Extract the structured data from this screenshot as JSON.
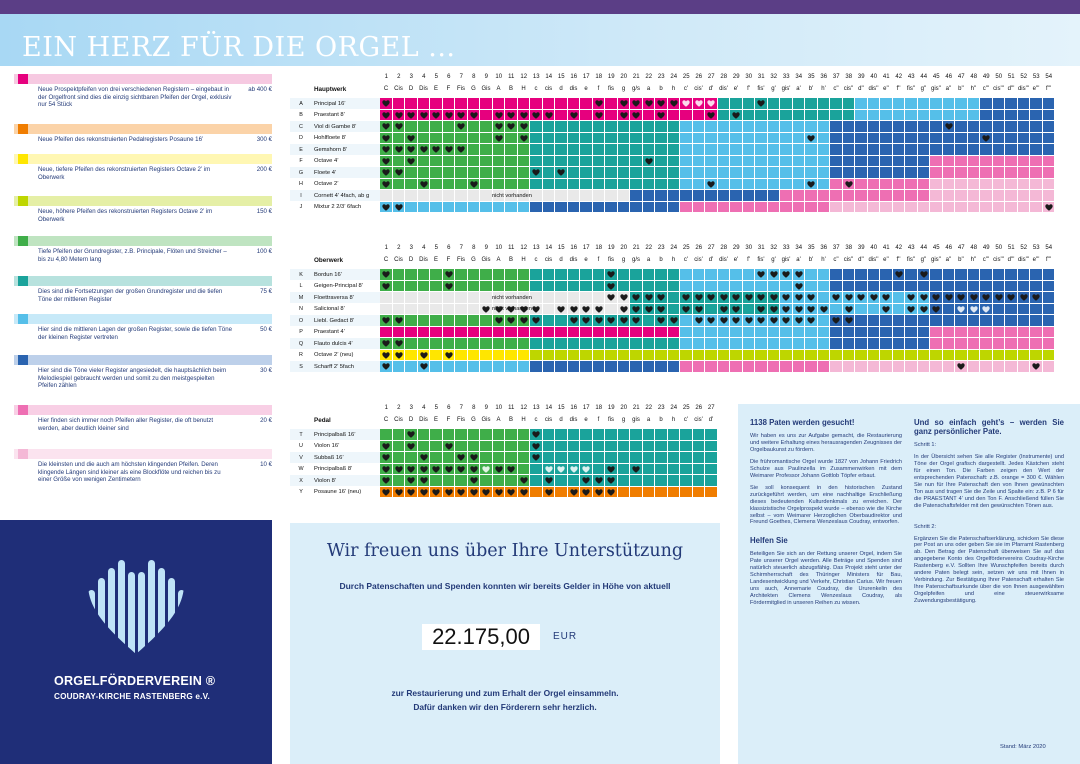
{
  "header": {
    "title": "EIN HERZ FÜR DIE ORGEL ..."
  },
  "colors": {
    "pink": "#e6007e",
    "orange": "#f07d00",
    "yellow": "#ffe600",
    "lime": "#bed600",
    "green": "#3fae49",
    "teal": "#1aa39b",
    "lightblue": "#55bfe9",
    "blue": "#2a64b0",
    "lightpink": "#ee6fb3",
    "palepink": "#f4b8d6",
    "notavail": "#e9e9e9"
  },
  "legend": [
    {
      "color": "pink",
      "desc": "Neue Prospektpfeifen von drei verschiedenen Registern – eingebaut in der Orgelfront sind dies die einzig sichtbaren Pfeifen der Orgel, exklusiv nur 54 Stück",
      "price": "ab 400 €"
    },
    {
      "color": "orange",
      "desc": "Neue Pfeifen des rekonstruierten Pedalregisters Posaune 16’",
      "price": "300 €"
    },
    {
      "color": "yellow",
      "desc": "Neue, tiefere Pfeifen des rekonstruierten Registers Octave 2’ im Oberwerk",
      "price": "200 €"
    },
    {
      "color": "lime",
      "desc": "Neue, höhere Pfeifen des rekonstruierten Registers Octave 2’ im Oberwerk",
      "price": "150 €"
    },
    {
      "color": "green",
      "desc": "Tiefe Pfeifen der Grundregister, z.B. Principale, Flöten und Streicher – bis zu 4,80 Metern lang",
      "price": "100 €"
    },
    {
      "color": "teal",
      "desc": "Dies sind die Fortsetzungen der großen Grundregister und die tiefen Töne der mittleren Register",
      "price": "75 €"
    },
    {
      "color": "lightblue",
      "desc": "Hier sind die mittleren Lagen der großen Register, sowie die tiefen Töne der kleinen Register vertreten",
      "price": "50 €"
    },
    {
      "color": "blue",
      "desc": "Hier sind die Töne vieler Register angesiedelt, die hauptsächlich beim Melodiespiel gebraucht werden und somit zu den meistgespielten Pfeifen zählen",
      "price": "30 €"
    },
    {
      "color": "lightpink",
      "desc": "Hier finden sich immer noch Pfeifen aller Register, die oft benutzt werden, aber deutlich kleiner sind",
      "price": "20 €"
    },
    {
      "color": "palepink",
      "desc": "Die kleinsten und die auch am höchsten klingenden Pfeifen. Deren klingende Längen sind kleiner als eine Blockflöte und reichen bis zu einer Größe von wenigen Zentimetern",
      "price": "10 €"
    }
  ],
  "notes_manual": [
    "C",
    "Cis",
    "D",
    "Dis",
    "E",
    "F",
    "Fis",
    "G",
    "Gis",
    "A",
    "B",
    "H",
    "c",
    "cis",
    "d",
    "dis",
    "e",
    "f",
    "fis",
    "g",
    "g/s",
    "a",
    "b",
    "h",
    "c'",
    "cis'",
    "d'",
    "dis'",
    "e'",
    "f'",
    "fis'",
    "g'",
    "gis'",
    "a'",
    "b'",
    "h'",
    "c''",
    "cis''",
    "d''",
    "dis''",
    "e''",
    "f''",
    "fis''",
    "g''",
    "gis''",
    "a''",
    "b''",
    "h''",
    "c'''",
    "cis'''",
    "d'''",
    "dis'''",
    "e'''",
    "f'''"
  ],
  "notes_pedal": [
    "C",
    "Cis",
    "D",
    "Dis",
    "E",
    "F",
    "Fis",
    "G",
    "Gis",
    "A",
    "B",
    "H",
    "c",
    "cis",
    "d",
    "dis",
    "e",
    "f",
    "fis",
    "g",
    "gis",
    "a",
    "b",
    "h",
    "c'",
    "cis'",
    "d'"
  ],
  "hauptwerk": {
    "title": "Hauptwerk",
    "rows": [
      {
        "letter": "A",
        "name": "Principal 16’"
      },
      {
        "letter": "B",
        "name": "Praestant 8’"
      },
      {
        "letter": "C",
        "name": "Viol di Gambe 8’"
      },
      {
        "letter": "D",
        "name": "Hohlfloete 8’"
      },
      {
        "letter": "E",
        "name": "Gemshorn 8’"
      },
      {
        "letter": "F",
        "name": "Octave 4’"
      },
      {
        "letter": "G",
        "name": "Floete 4’"
      },
      {
        "letter": "H",
        "name": "Octave 2’"
      },
      {
        "letter": "I",
        "name": "Cornett 4’ 4fach, ab g",
        "na": "nicht vorhanden"
      },
      {
        "letter": "J",
        "name": "Mixtur 2 2/3’ 6fach"
      }
    ]
  },
  "oberwerk": {
    "title": "Oberwerk",
    "rows": [
      {
        "letter": "K",
        "name": "Bordun 16’"
      },
      {
        "letter": "L",
        "name": "Geigen-Principal 8’"
      },
      {
        "letter": "M",
        "name": "Floettraversa 8’",
        "na": "nicht vorhanden"
      },
      {
        "letter": "N",
        "name": "Salicional 8’",
        "na": "nicht vorhanden"
      },
      {
        "letter": "O",
        "name": "Liebl. Gedact 8’"
      },
      {
        "letter": "P",
        "name": "Praestant 4’"
      },
      {
        "letter": "Q",
        "name": "Flauto dulcis 4’"
      },
      {
        "letter": "R",
        "name": "Octave 2’ (neu)"
      },
      {
        "letter": "S",
        "name": "Scharff 2’ 5fach"
      }
    ]
  },
  "pedal": {
    "title": "Pedal",
    "rows": [
      {
        "letter": "T",
        "name": "Principalbaß 16’"
      },
      {
        "letter": "U",
        "name": "Violon 16’"
      },
      {
        "letter": "V",
        "name": "Subbaß 16’"
      },
      {
        "letter": "W",
        "name": "Principalbaß 8’"
      },
      {
        "letter": "X",
        "name": "Violon 8’"
      },
      {
        "letter": "Y",
        "name": "Posaune 16’ (neu)"
      }
    ]
  },
  "org": {
    "name": "ORGELFÖRDERVEREIN ®",
    "sub": "COUDRAY-KIRCHE RASTENBERG e.V."
  },
  "support": {
    "headline": "Wir freuen uns über Ihre Unterstützung",
    "line1": "Durch Patenschaften und Spenden konnten wir bereits Gelder in Höhe von aktuell",
    "amount": "22.175,00",
    "currency": "EUR",
    "line2a": "zur Restaurierung und zum Erhalt der Orgel einsammeln.",
    "line2b": "Dafür danken wir den Förderern sehr herzlich."
  },
  "right_left": {
    "h1": "1138 Paten werden gesucht!",
    "p1": "Wir haben es uns zur Aufgabe gemacht, die Restaurierung und weitere Erhaltung eines herausragenden Zeugnisses der Orgelbaukunst zu fördern.",
    "p2": "Die frühromantische Orgel wurde 1827 von Johann Friedrich Schulze aus Paulinzella im Zusammenwirken mit dem Weimarer Professor Johann Gottlob Töpfer erbaut.",
    "p3": "Sie soll konsequent in den historischen Zustand zurückgeführt werden, um eine nachhaltige Erschließung dieses bedeutenden Kulturdenkmals zu erreichen. Der klassizistische Orgelprospekt wurde – ebenso wie die Kirche selbst – vom Weimarer Herzoglichen Oberbaudirektor und Freund Goethes, Clemens Wenzeslaus Coudray, entworfen.",
    "h2": "Helfen Sie",
    "p4": "Beteiligen Sie sich an der Rettung unserer Orgel, indem Sie Pate unserer Orgel werden. Alle Beträge und Spenden sind natürlich steuerlich abzugsfähig. Das Projekt steht unter der Schirmherrschaft des Thüringer Ministers für Bau, Landesentwicklung und Verkehr, Christian Carius. Wir freuen uns auch, Annemarie Coudray, die Ururenkelin des Architekten Clemens Wenzeslaus Coudray, als Fördermitglied in unseren Reihen zu wissen."
  },
  "right_right": {
    "h1": "Und so einfach geht’s – werden Sie ganz persönlicher Pate.",
    "s1": "Schritt 1:",
    "p1": "In der Übersicht sehen Sie alle Register (Instrumente) und Töne der Orgel grafisch dargestellt. Jedes Kästchen steht für einen Ton. Die Farben zeigen den Wert der entsprechenden Patenschaft: z.B. orange = 300 €. Wählen Sie nun für Ihre Patenschaft den von Ihnen gewünschten Ton aus und tragen Sie die Zeile und Spalte ein: z.B. P 6 für die PRAESTANT 4’ und den Ton F. Anschließend füllen Sie die Patenschaftsfelder mit den gewünschten Tönen aus.",
    "s2": "Schritt 2:",
    "p2": "Ergänzen Sie die Patenschaftserklärung, schicken Sie diese per Post an uns oder geben Sie sie im Pfarramt Rastenberg ab. Den Betrag der Patenschaft überweisen Sie auf das angegebene Konto des Orgelfördervereins Coudray-Kirche Rastenberg e.V. Sollten Ihre Wunschpfeifen bereits durch andere Paten belegt sein, setzen wir uns mit Ihnen in Verbindung. Zur Bestätigung Ihrer Patenschaft erhalten Sie Ihre Patenschaftsurkunde über die von Ihnen ausgewählten Orgelpfeifen und eine steuerwirksame Zuwendungsbestätigung."
  },
  "stand": "Stand: März 2020"
}
